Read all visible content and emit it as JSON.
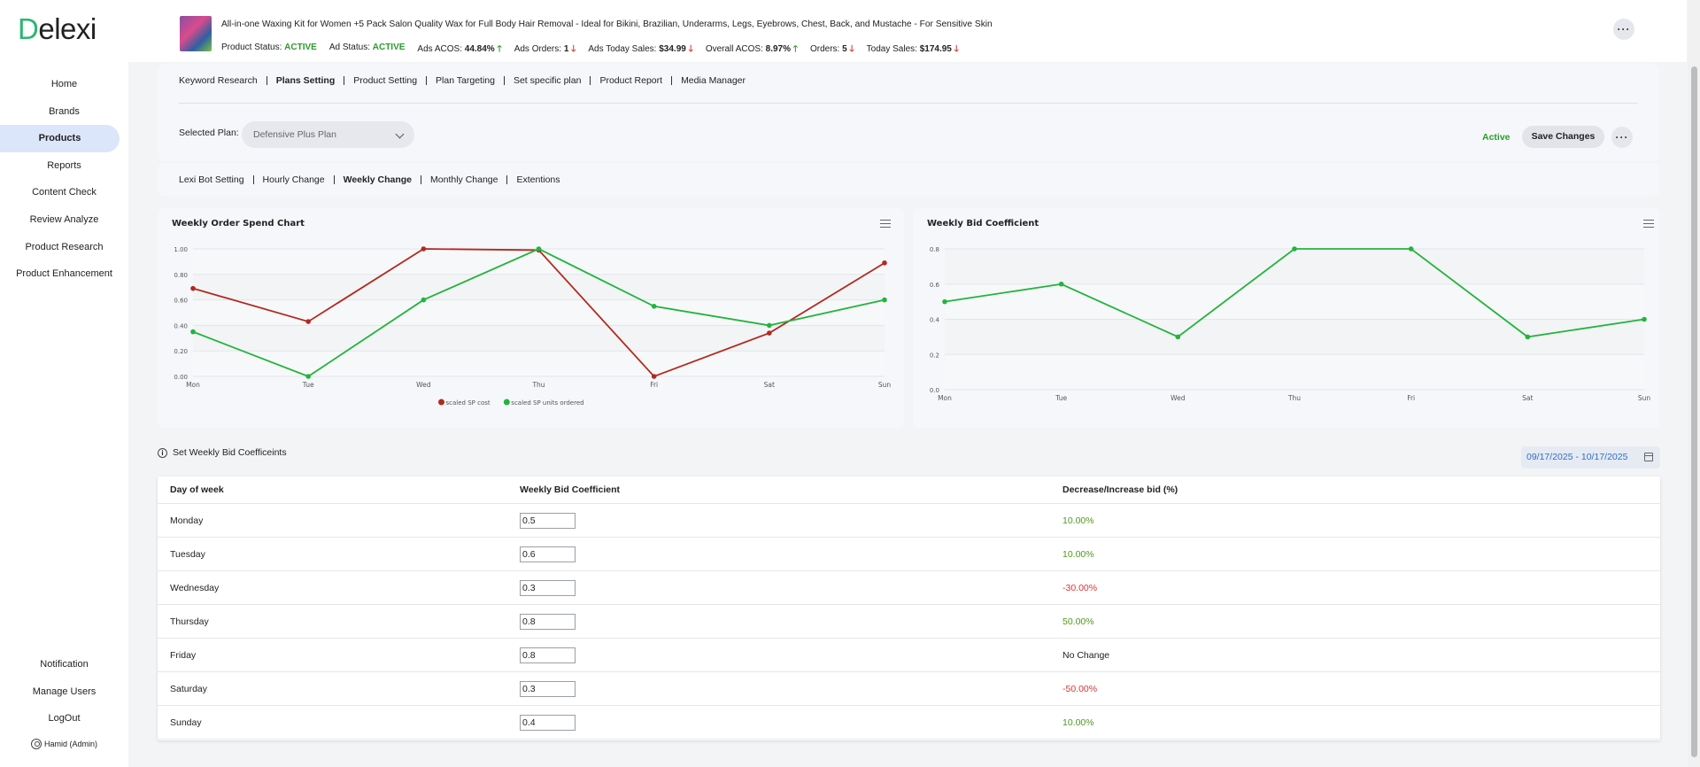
{
  "app": {
    "logo_initial": "D",
    "logo_rest": "elexi"
  },
  "sidebar": {
    "items": [
      {
        "label": "Home"
      },
      {
        "label": "Brands"
      },
      {
        "label": "Products",
        "active": true
      },
      {
        "label": "Reports"
      },
      {
        "label": "Content Check"
      },
      {
        "label": "Review Analyze"
      },
      {
        "label": "Product Research"
      },
      {
        "label": "Product Enhancement"
      }
    ],
    "bottom": [
      {
        "label": "Notification"
      },
      {
        "label": "Manage Users"
      },
      {
        "label": "LogOut"
      }
    ],
    "user": "Hamid (Admin)"
  },
  "product": {
    "title": "All-in-one Waxing Kit for Women +5 Pack Salon Quality Wax for Full Body Hair Removal - Ideal for Bikini, Brazilian, Underarms, Legs, Eyebrows, Chest, Back, and Mustache - For Sensitive Skin",
    "stats": [
      {
        "label": "Product Status:",
        "value": "ACTIVE",
        "style": "green",
        "arrow": ""
      },
      {
        "label": "Ad Status:",
        "value": "ACTIVE",
        "style": "green",
        "arrow": ""
      },
      {
        "label": "Ads ACOS:",
        "value": "44.84%",
        "style": "bold",
        "arrow": "up"
      },
      {
        "label": "Ads Orders:",
        "value": "1",
        "style": "bold",
        "arrow": "down"
      },
      {
        "label": "Ads Today Sales:",
        "value": "$34.99",
        "style": "bold",
        "arrow": "down"
      },
      {
        "label": "Overall ACOS:",
        "value": "8.97%",
        "style": "bold",
        "arrow": "up"
      },
      {
        "label": "Orders:",
        "value": "5",
        "style": "bold",
        "arrow": "down"
      },
      {
        "label": "Today Sales:",
        "value": "$174.95",
        "style": "bold",
        "arrow": "down"
      }
    ]
  },
  "tabs": [
    {
      "label": "Keyword Research"
    },
    {
      "label": "Plans Setting",
      "active": true
    },
    {
      "label": "Product Setting"
    },
    {
      "label": "Plan Targeting"
    },
    {
      "label": "Set specific plan"
    },
    {
      "label": "Product Report"
    },
    {
      "label": "Media Manager"
    }
  ],
  "plan": {
    "selected_label": "Selected Plan:",
    "selected_value": "Defensive Plus Plan",
    "status": "Active",
    "save_label": "Save Changes"
  },
  "subtabs": [
    {
      "label": "Lexi Bot Setting"
    },
    {
      "label": "Hourly Change"
    },
    {
      "label": "Weekly Change",
      "active": true
    },
    {
      "label": "Monthly Change"
    },
    {
      "label": "Extentions"
    }
  ],
  "chart_data": [
    {
      "type": "line",
      "title": "Weekly Order Spend Chart",
      "x": [
        "Mon",
        "Tue",
        "Wed",
        "Thu",
        "Fri",
        "Sat",
        "Sun"
      ],
      "ylim": [
        0,
        1
      ],
      "yticks": [
        "0.00",
        "0.20",
        "0.40",
        "0.60",
        "0.80",
        "1.00"
      ],
      "grid": true,
      "legend_position": "bottom",
      "series": [
        {
          "name": "scaled SP cost",
          "color": "#b22a1e",
          "values": [
            0.69,
            0.43,
            1.0,
            0.99,
            0.0,
            0.34,
            0.89
          ]
        },
        {
          "name": "scaled SP units ordered",
          "color": "#22b43c",
          "values": [
            0.35,
            0.0,
            0.6,
            1.0,
            0.55,
            0.4,
            0.6
          ]
        }
      ]
    },
    {
      "type": "line",
      "title": "Weekly Bid Coefficient",
      "x": [
        "Mon",
        "Tue",
        "Wed",
        "Thu",
        "Fri",
        "Sat",
        "Sun"
      ],
      "ylim": [
        0,
        0.8
      ],
      "yticks": [
        "0.0",
        "0.2",
        "0.4",
        "0.6",
        "0.8"
      ],
      "grid": true,
      "series": [
        {
          "color": "#22b43c",
          "values": [
            0.5,
            0.6,
            0.3,
            0.8,
            0.8,
            0.3,
            0.4
          ]
        }
      ]
    }
  ],
  "weekly": {
    "title": "Set Weekly Bid Coefficeints",
    "date_range": "09/17/2025 - 10/17/2025",
    "headers": [
      "Day of week",
      "Weekly Bid Coefficient",
      "Decrease/Increase bid (%)"
    ],
    "rows": [
      {
        "day": "Monday",
        "coef": "0.5",
        "change": "10.00%",
        "kind": "pos"
      },
      {
        "day": "Tuesday",
        "coef": "0.6",
        "change": "10.00%",
        "kind": "pos"
      },
      {
        "day": "Wednesday",
        "coef": "0.3",
        "change": "-30.00%",
        "kind": "neg"
      },
      {
        "day": "Thursday",
        "coef": "0.8",
        "change": "50.00%",
        "kind": "pos"
      },
      {
        "day": "Friday",
        "coef": "0.8",
        "change": "No Change",
        "kind": "neu"
      },
      {
        "day": "Saturday",
        "coef": "0.3",
        "change": "-50.00%",
        "kind": "neg"
      },
      {
        "day": "Sunday",
        "coef": "0.4",
        "change": "10.00%",
        "kind": "pos"
      }
    ]
  }
}
